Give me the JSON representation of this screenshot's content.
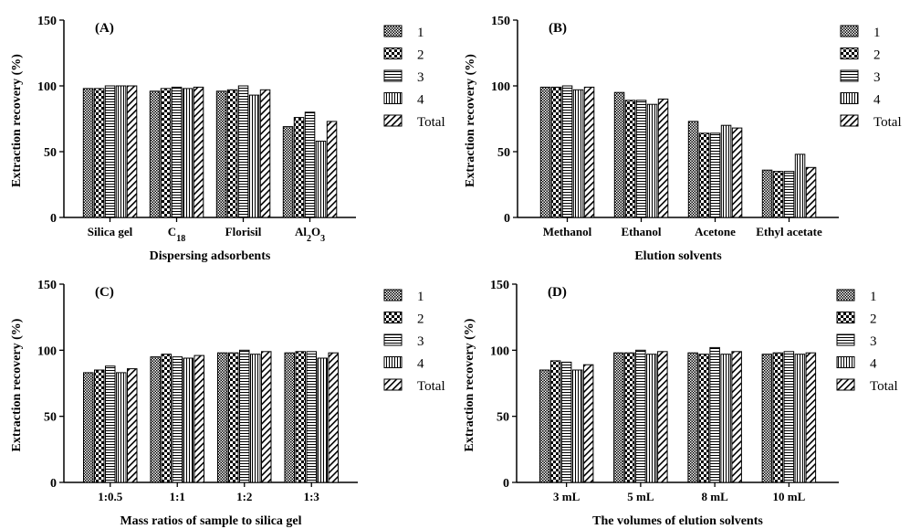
{
  "chart_data": [
    {
      "type": "bar",
      "panel_label": "(A)",
      "xlabel": "Dispersing adsorbents",
      "ylabel": "Extraction recovery (%)",
      "ylim": [
        0,
        150
      ],
      "yticks": [
        "0",
        "50",
        "100",
        "150"
      ],
      "categories": [
        "Silica gel",
        "C18",
        "Florisil",
        "Al2O3"
      ],
      "series": [
        {
          "name": "1",
          "values": [
            98,
            96,
            96,
            69
          ]
        },
        {
          "name": "2",
          "values": [
            98,
            98,
            97,
            76
          ]
        },
        {
          "name": "3",
          "values": [
            100,
            99,
            100,
            80
          ]
        },
        {
          "name": "4",
          "values": [
            100,
            98,
            93,
            58
          ]
        },
        {
          "name": "Total",
          "values": [
            100,
            99,
            97,
            73
          ]
        }
      ],
      "legend": "right"
    },
    {
      "type": "bar",
      "panel_label": "(B)",
      "xlabel": "Elution solvents",
      "ylabel": "Extraction recovery (%)",
      "ylim": [
        0,
        150
      ],
      "yticks": [
        "0",
        "50",
        "100",
        "150"
      ],
      "categories": [
        "Methanol",
        "Ethanol",
        "Acetone",
        "Ethyl acetate"
      ],
      "series": [
        {
          "name": "1",
          "values": [
            99,
            95,
            73,
            36
          ]
        },
        {
          "name": "2",
          "values": [
            99,
            89,
            64,
            35
          ]
        },
        {
          "name": "3",
          "values": [
            100,
            89,
            64,
            35
          ]
        },
        {
          "name": "4",
          "values": [
            97,
            86,
            70,
            48
          ]
        },
        {
          "name": "Total",
          "values": [
            99,
            90,
            68,
            38
          ]
        }
      ],
      "legend": "right"
    },
    {
      "type": "bar",
      "panel_label": "(C)",
      "xlabel": "Mass ratios of sample to silica gel",
      "ylabel": "Extraction recovery (%)",
      "ylim": [
        0,
        150
      ],
      "yticks": [
        "0",
        "50",
        "100",
        "150"
      ],
      "categories": [
        "1:0.5",
        "1:1",
        "1:2",
        "1:3"
      ],
      "series": [
        {
          "name": "1",
          "values": [
            83,
            95,
            98,
            98
          ]
        },
        {
          "name": "2",
          "values": [
            85,
            97,
            98,
            99
          ]
        },
        {
          "name": "3",
          "values": [
            88,
            95,
            100,
            99
          ]
        },
        {
          "name": "4",
          "values": [
            83,
            94,
            97,
            94
          ]
        },
        {
          "name": "Total",
          "values": [
            86,
            96,
            99,
            98
          ]
        }
      ],
      "legend": "right"
    },
    {
      "type": "bar",
      "panel_label": "(D)",
      "xlabel": "The volumes of elution solvents",
      "ylabel": "Extraction recovery (%)",
      "ylim": [
        0,
        150
      ],
      "yticks": [
        "0",
        "50",
        "100",
        "150"
      ],
      "categories": [
        "3 mL",
        "5 mL",
        "8 mL",
        "10 mL"
      ],
      "series": [
        {
          "name": "1",
          "values": [
            85,
            98,
            98,
            97
          ]
        },
        {
          "name": "2",
          "values": [
            92,
            98,
            97,
            98
          ]
        },
        {
          "name": "3",
          "values": [
            91,
            100,
            102,
            99
          ]
        },
        {
          "name": "4",
          "values": [
            85,
            97,
            97,
            97
          ]
        },
        {
          "name": "Total",
          "values": [
            89,
            99,
            99,
            98
          ]
        }
      ],
      "legend": "right"
    }
  ]
}
